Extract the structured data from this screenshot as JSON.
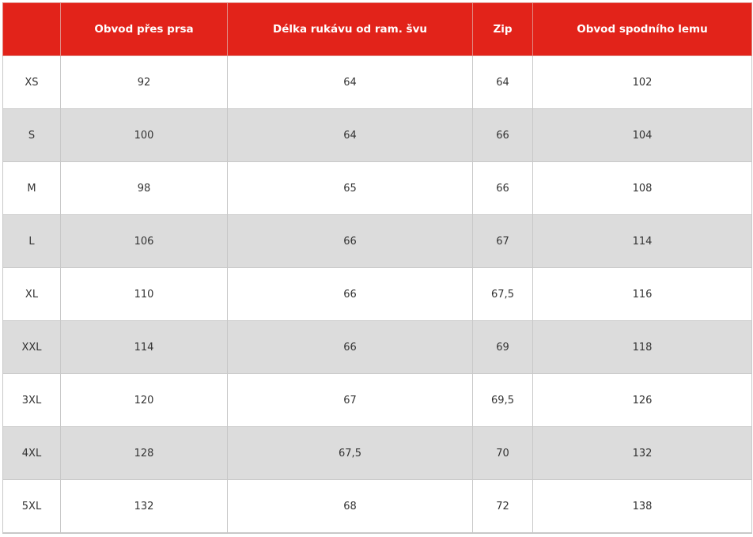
{
  "header_color": "#e2231a",
  "stripe_color": "#dcdcdc",
  "columns": [
    "",
    "Obvod přes prsa",
    "Délka rukávu od ram. švu",
    "Zip",
    "Obvod spodního lemu"
  ],
  "rows": [
    [
      "XS",
      "92",
      "64",
      "64",
      "102"
    ],
    [
      "S",
      "100",
      "64",
      "66",
      "104"
    ],
    [
      "M",
      "98",
      "65",
      "66",
      "108"
    ],
    [
      "L",
      "106",
      "66",
      "67",
      "114"
    ],
    [
      "XL",
      "110",
      "66",
      "67,5",
      "116"
    ],
    [
      "XXL",
      "114",
      "66",
      "69",
      "118"
    ],
    [
      "3XL",
      "120",
      "67",
      "69,5",
      "126"
    ],
    [
      "4XL",
      "128",
      "67,5",
      "70",
      "132"
    ],
    [
      "5XL",
      "132",
      "68",
      "72",
      "138"
    ]
  ]
}
